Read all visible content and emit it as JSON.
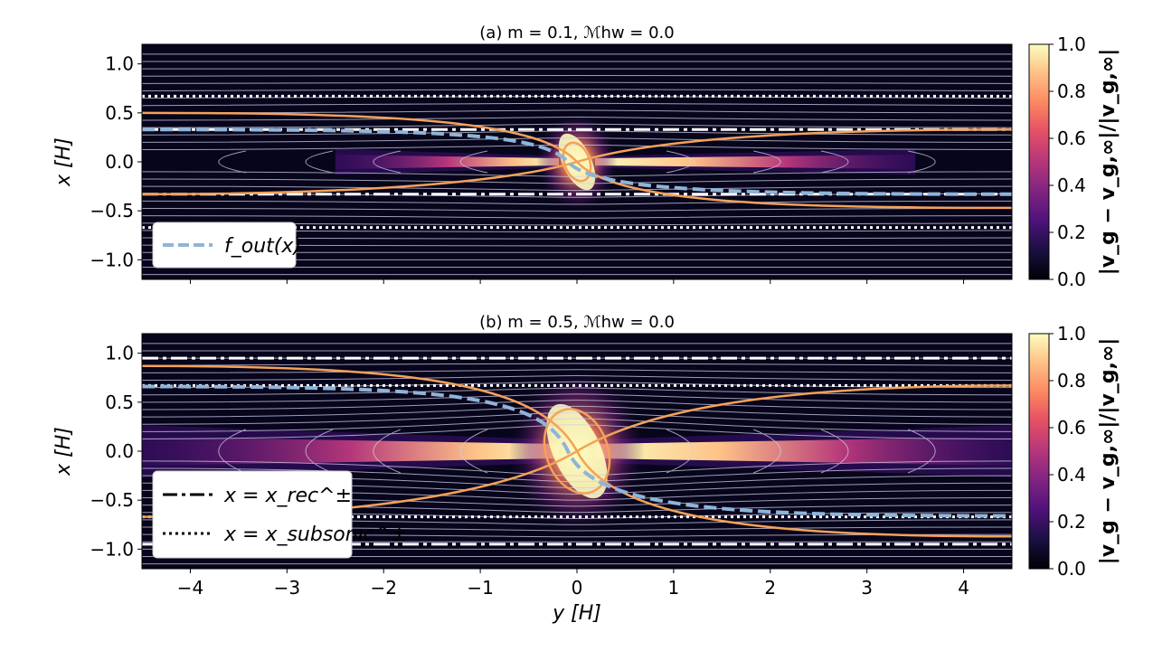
{
  "chart_data": [
    {
      "type": "heatmap",
      "title": "(a) m = 0.1,  ℳhw = 0.0",
      "xlabel": "y [H]",
      "ylabel": "x [H]",
      "xlim": [
        -4.5,
        4.5
      ],
      "ylim": [
        -1.2,
        1.2
      ],
      "xticks": [
        -4,
        -3,
        -2,
        -1,
        0,
        1,
        2,
        3,
        4
      ],
      "xtick_labels": [
        "−4",
        "−3",
        "−2",
        "−1",
        "0",
        "1",
        "2",
        "3",
        "4"
      ],
      "yticks": [
        1.0,
        0.5,
        0.0,
        -0.5,
        -1.0
      ],
      "ytick_labels": [
        "1.0",
        "0.5",
        "0.0",
        "−0.5",
        "−1.0"
      ],
      "x_rec": [
        0.33,
        -0.33
      ],
      "x_subsonic": [
        0.67,
        -0.67
      ],
      "f_out_left": 0.33,
      "f_out_right": -0.33,
      "separatrix_left": [
        0.5,
        -0.33
      ],
      "separatrix_right": [
        0.33,
        -0.47
      ],
      "legend": [
        "f_out(x)"
      ],
      "legend_position": "lower-left",
      "colorbar": {
        "label": "|v_g − v_g,∞|/|v_g,∞|",
        "min": 0.0,
        "max": 1.0,
        "ticks": [
          "0.0",
          "0.2",
          "0.4",
          "0.6",
          "0.8",
          "1.0"
        ]
      }
    },
    {
      "type": "heatmap",
      "title": "(b) m = 0.5,  ℳhw = 0.0",
      "xlabel": "y [H]",
      "ylabel": "x [H]",
      "xlim": [
        -4.5,
        4.5
      ],
      "ylim": [
        -1.2,
        1.2
      ],
      "xticks": [
        -4,
        -3,
        -2,
        -1,
        0,
        1,
        2,
        3,
        4
      ],
      "xtick_labels": [
        "−4",
        "−3",
        "−2",
        "−1",
        "0",
        "1",
        "2",
        "3",
        "4"
      ],
      "yticks": [
        1.0,
        0.5,
        0.0,
        -0.5,
        -1.0
      ],
      "ytick_labels": [
        "1.0",
        "0.5",
        "0.0",
        "−0.5",
        "−1.0"
      ],
      "x_rec": [
        0.95,
        -0.95
      ],
      "x_subsonic": [
        0.67,
        -0.67
      ],
      "f_out_left": 0.66,
      "f_out_right": -0.66,
      "separatrix_left": [
        0.87,
        -0.67
      ],
      "separatrix_right": [
        0.67,
        -0.87
      ],
      "legend": [
        "x = x_rec^±",
        "x = x_subsonic^±"
      ],
      "legend_position": "lower-left",
      "colorbar": {
        "label": "|v_g − v_g,∞|/|v_g,∞|",
        "min": 0.0,
        "max": 1.0,
        "ticks": [
          "0.0",
          "0.2",
          "0.4",
          "0.6",
          "0.8",
          "1.0"
        ]
      }
    }
  ]
}
